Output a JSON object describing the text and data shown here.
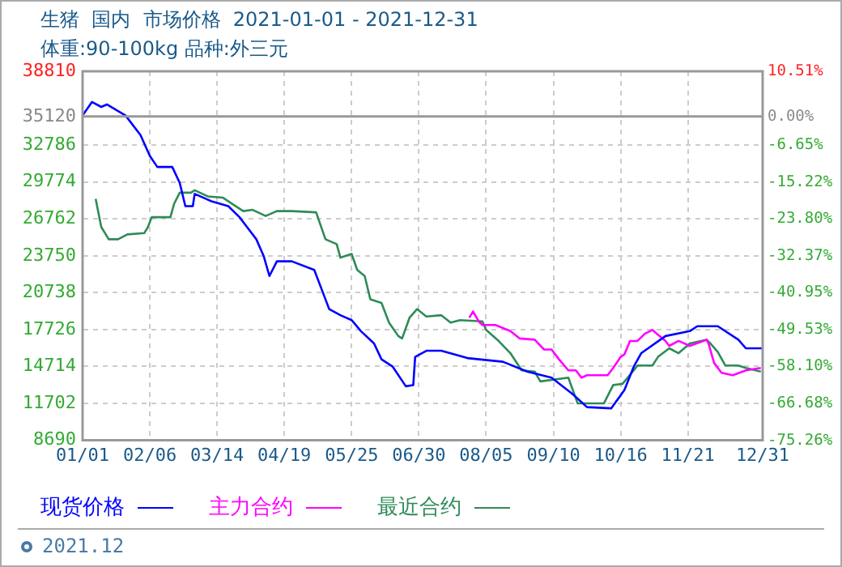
{
  "chart_data": {
    "type": "line",
    "title": "生猪  国内  市场价格  2021-01-01 - 2021-12-31",
    "subtitle": "体重:90-100kg 品种:外三元",
    "annotations": [
      "2021.12"
    ],
    "xlim": [
      "2021-01-01",
      "2021-12-31"
    ],
    "xticks": [
      {
        "value": "2021-01-01",
        "label": "01/01"
      },
      {
        "value": "2021-02-06",
        "label": "02/06"
      },
      {
        "value": "2021-03-14",
        "label": "03/14"
      },
      {
        "value": "2021-04-19",
        "label": "04/19"
      },
      {
        "value": "2021-05-25",
        "label": "05/25"
      },
      {
        "value": "2021-06-30",
        "label": "06/30"
      },
      {
        "value": "2021-08-05",
        "label": "08/05"
      },
      {
        "value": "2021-09-10",
        "label": "09/10"
      },
      {
        "value": "2021-10-16",
        "label": "10/16"
      },
      {
        "value": "2021-11-21",
        "label": "11/21"
      },
      {
        "value": "2021-12-31",
        "label": "12/31"
      }
    ],
    "ylim": [
      8690,
      38810
    ],
    "yticks": [
      8690,
      11702,
      14714,
      17726,
      20738,
      23750,
      26762,
      29774,
      32786,
      35120,
      38810
    ],
    "y2lim": [
      -75.26,
      10.51
    ],
    "y2ticks": [
      {
        "value": -75.26,
        "label": "-75.26%"
      },
      {
        "value": -66.68,
        "label": "-66.68%"
      },
      {
        "value": -58.1,
        "label": "-58.10%"
      },
      {
        "value": -49.53,
        "label": "-49.53%"
      },
      {
        "value": -40.95,
        "label": "-40.95%"
      },
      {
        "value": -32.37,
        "label": "-32.37%"
      },
      {
        "value": -23.8,
        "label": "-23.80%"
      },
      {
        "value": -15.22,
        "label": "-15.22%"
      },
      {
        "value": -6.65,
        "label": "-6.65%"
      },
      {
        "value": 0,
        "label": "0.00%"
      },
      {
        "value": 10.51,
        "label": "10.51%"
      }
    ],
    "ref_lines": [
      {
        "axis": "y",
        "value": 35120,
        "color": "#999999"
      }
    ],
    "grid": true,
    "legend": "bottom",
    "marker": "none",
    "line_style": "solid",
    "series": [
      {
        "name": "现货价格",
        "color": "#0000ff",
        "x": [
          "2021-01-01",
          "2021-01-06",
          "2021-01-11",
          "2021-01-14",
          "2021-01-24",
          "2021-02-01",
          "2021-02-06",
          "2021-02-10",
          "2021-02-18",
          "2021-02-22",
          "2021-02-25",
          "2021-03-01",
          "2021-03-02",
          "2021-03-11",
          "2021-03-20",
          "2021-03-26",
          "2021-03-30",
          "2021-04-04",
          "2021-04-08",
          "2021-04-11",
          "2021-04-15",
          "2021-04-23",
          "2021-05-05",
          "2021-05-09",
          "2021-05-13",
          "2021-05-19",
          "2021-05-25",
          "2021-05-30",
          "2021-06-06",
          "2021-06-10",
          "2021-06-16",
          "2021-06-23",
          "2021-06-27",
          "2021-06-28",
          "2021-07-04",
          "2021-07-12",
          "2021-07-26",
          "2021-08-14",
          "2021-08-27",
          "2021-09-09",
          "2021-09-20",
          "2021-09-28",
          "2021-10-11",
          "2021-10-18",
          "2021-10-23",
          "2021-10-27",
          "2021-11-09",
          "2021-11-22",
          "2021-11-26",
          "2021-12-07",
          "2021-12-18",
          "2021-12-22",
          "2021-12-31"
        ],
        "values": [
          35200,
          36300,
          35900,
          36100,
          35200,
          33600,
          31900,
          31000,
          31000,
          29700,
          27800,
          27800,
          28800,
          28200,
          27800,
          26900,
          26100,
          25100,
          23700,
          22100,
          23300,
          23300,
          22600,
          21000,
          19400,
          18900,
          18500,
          17600,
          16600,
          15300,
          14700,
          13100,
          13200,
          15500,
          16000,
          16000,
          15400,
          15100,
          14300,
          13800,
          12500,
          11400,
          11300,
          12800,
          14700,
          15800,
          17200,
          17600,
          18000,
          18000,
          16900,
          16200,
          16200
        ]
      },
      {
        "name": "主力合约",
        "color": "#ff00ff",
        "x": [
          "2021-07-27",
          "2021-07-29",
          "2021-08-01",
          "2021-08-03",
          "2021-08-10",
          "2021-08-18",
          "2021-08-23",
          "2021-08-31",
          "2021-09-05",
          "2021-09-09",
          "2021-09-13",
          "2021-09-18",
          "2021-09-22",
          "2021-09-25",
          "2021-09-28",
          "2021-10-09",
          "2021-10-12",
          "2021-10-16",
          "2021-10-18",
          "2021-10-21",
          "2021-10-25",
          "2021-10-29",
          "2021-11-02",
          "2021-11-05",
          "2021-11-09",
          "2021-11-11",
          "2021-11-16",
          "2021-11-22",
          "2021-12-01",
          "2021-12-02",
          "2021-12-05",
          "2021-12-09",
          "2021-12-15",
          "2021-12-22",
          "2021-12-30"
        ],
        "values": [
          18700,
          19200,
          18400,
          18100,
          18100,
          17600,
          17000,
          16900,
          16100,
          16100,
          15300,
          14400,
          14400,
          13800,
          14000,
          14000,
          14600,
          15500,
          15700,
          16800,
          16800,
          17400,
          17700,
          17300,
          16800,
          16400,
          16800,
          16400,
          16900,
          16600,
          15000,
          14200,
          14000,
          14400,
          14600
        ]
      },
      {
        "name": "最近合约",
        "color": "#2e8b57",
        "x": [
          "2021-01-08",
          "2021-01-11",
          "2021-01-15",
          "2021-01-20",
          "2021-01-25",
          "2021-02-03",
          "2021-02-05",
          "2021-02-07",
          "2021-02-17",
          "2021-02-19",
          "2021-02-22",
          "2021-02-28",
          "2021-03-02",
          "2021-03-09",
          "2021-03-17",
          "2021-03-24",
          "2021-03-28",
          "2021-04-02",
          "2021-04-09",
          "2021-04-15",
          "2021-04-23",
          "2021-05-06",
          "2021-05-11",
          "2021-05-17",
          "2021-05-19",
          "2021-05-25",
          "2021-05-28",
          "2021-06-01",
          "2021-06-04",
          "2021-06-10",
          "2021-06-14",
          "2021-06-19",
          "2021-06-21",
          "2021-06-25",
          "2021-06-29",
          "2021-07-04",
          "2021-07-12",
          "2021-07-17",
          "2021-07-22",
          "2021-08-03",
          "2021-08-05",
          "2021-08-11",
          "2021-08-18",
          "2021-08-24",
          "2021-08-31",
          "2021-09-03",
          "2021-09-18",
          "2021-09-23",
          "2021-10-07",
          "2021-10-12",
          "2021-10-17",
          "2021-10-23",
          "2021-10-25",
          "2021-11-02",
          "2021-11-05",
          "2021-11-11",
          "2021-11-16",
          "2021-11-22",
          "2021-12-01",
          "2021-12-03",
          "2021-12-07",
          "2021-12-11",
          "2021-12-18",
          "2021-12-22",
          "2021-12-30"
        ],
        "values": [
          28400,
          26100,
          25100,
          25100,
          25500,
          25600,
          26100,
          26900,
          26900,
          28000,
          28900,
          28900,
          29100,
          28600,
          28500,
          27800,
          27400,
          27500,
          27000,
          27400,
          27400,
          27300,
          25100,
          24700,
          23600,
          23900,
          22600,
          22100,
          20200,
          19900,
          18300,
          17200,
          17000,
          18700,
          19400,
          18800,
          18900,
          18300,
          18500,
          18400,
          17700,
          16900,
          15800,
          14400,
          14300,
          13500,
          13800,
          11700,
          11700,
          13200,
          13300,
          14400,
          14800,
          14800,
          15500,
          16200,
          15800,
          16600,
          16900,
          16600,
          15900,
          14800,
          14800,
          14600,
          14300
        ]
      }
    ]
  }
}
